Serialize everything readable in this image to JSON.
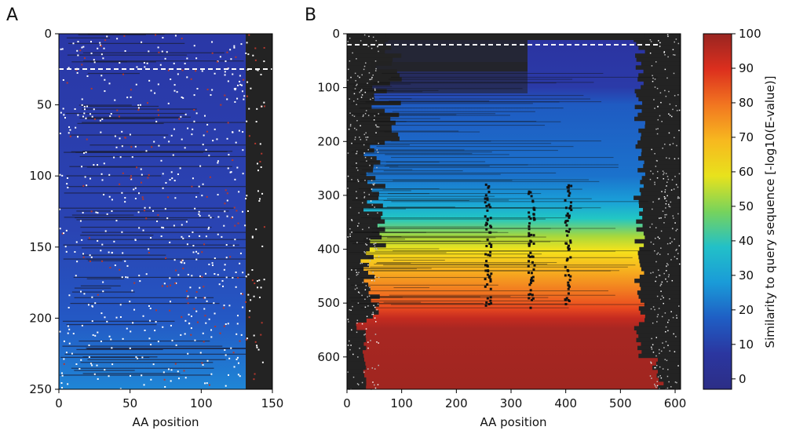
{
  "chart_data": [
    {
      "type": "heatmap",
      "panel_label": "A",
      "xlabel": "AA position",
      "ylabel": "",
      "xlim": [
        0,
        150
      ],
      "ylim": [
        250,
        0
      ],
      "xticks": [
        0,
        50,
        100,
        150
      ],
      "yticks": [
        0,
        50,
        100,
        150,
        200,
        250
      ],
      "dashed_line_y": 25,
      "sequence_end_position": 132,
      "gradient": [
        {
          "row": 0,
          "value": 5
        },
        {
          "row": 150,
          "value": 10
        },
        {
          "row": 200,
          "value": 14
        },
        {
          "row": 250,
          "value": 22
        }
      ]
    },
    {
      "type": "heatmap",
      "panel_label": "B",
      "xlabel": "AA position",
      "ylabel": "",
      "xlim": [
        0,
        610
      ],
      "ylim": [
        660,
        0
      ],
      "xticks": [
        0,
        100,
        200,
        300,
        400,
        500,
        600
      ],
      "yticks": [
        0,
        100,
        200,
        300,
        400,
        500,
        600
      ],
      "dashed_line_y": 20,
      "gradient": [
        {
          "row": 0,
          "value": 5
        },
        {
          "row": 120,
          "value": 15
        },
        {
          "row": 300,
          "value": 25
        },
        {
          "row": 340,
          "value": 40
        },
        {
          "row": 380,
          "value": 60
        },
        {
          "row": 430,
          "value": 75
        },
        {
          "row": 470,
          "value": 85
        },
        {
          "row": 520,
          "value": 95
        },
        {
          "row": 660,
          "value": 100
        }
      ]
    }
  ],
  "colorbar": {
    "label": "Similarity to query sequence [-log10(E-value)]",
    "ticks": [
      100,
      90,
      80,
      70,
      60,
      50,
      40,
      30,
      20,
      10,
      0
    ],
    "range": [
      -3,
      100
    ],
    "colors": [
      "#2b2f8f",
      "#2a3fb0",
      "#2159c4",
      "#1a8fd6",
      "#1fc2c0",
      "#7ad35a",
      "#f4e41a",
      "#f7b21e",
      "#f2701f",
      "#e2311d",
      "#b52622",
      "#9c2620"
    ]
  }
}
